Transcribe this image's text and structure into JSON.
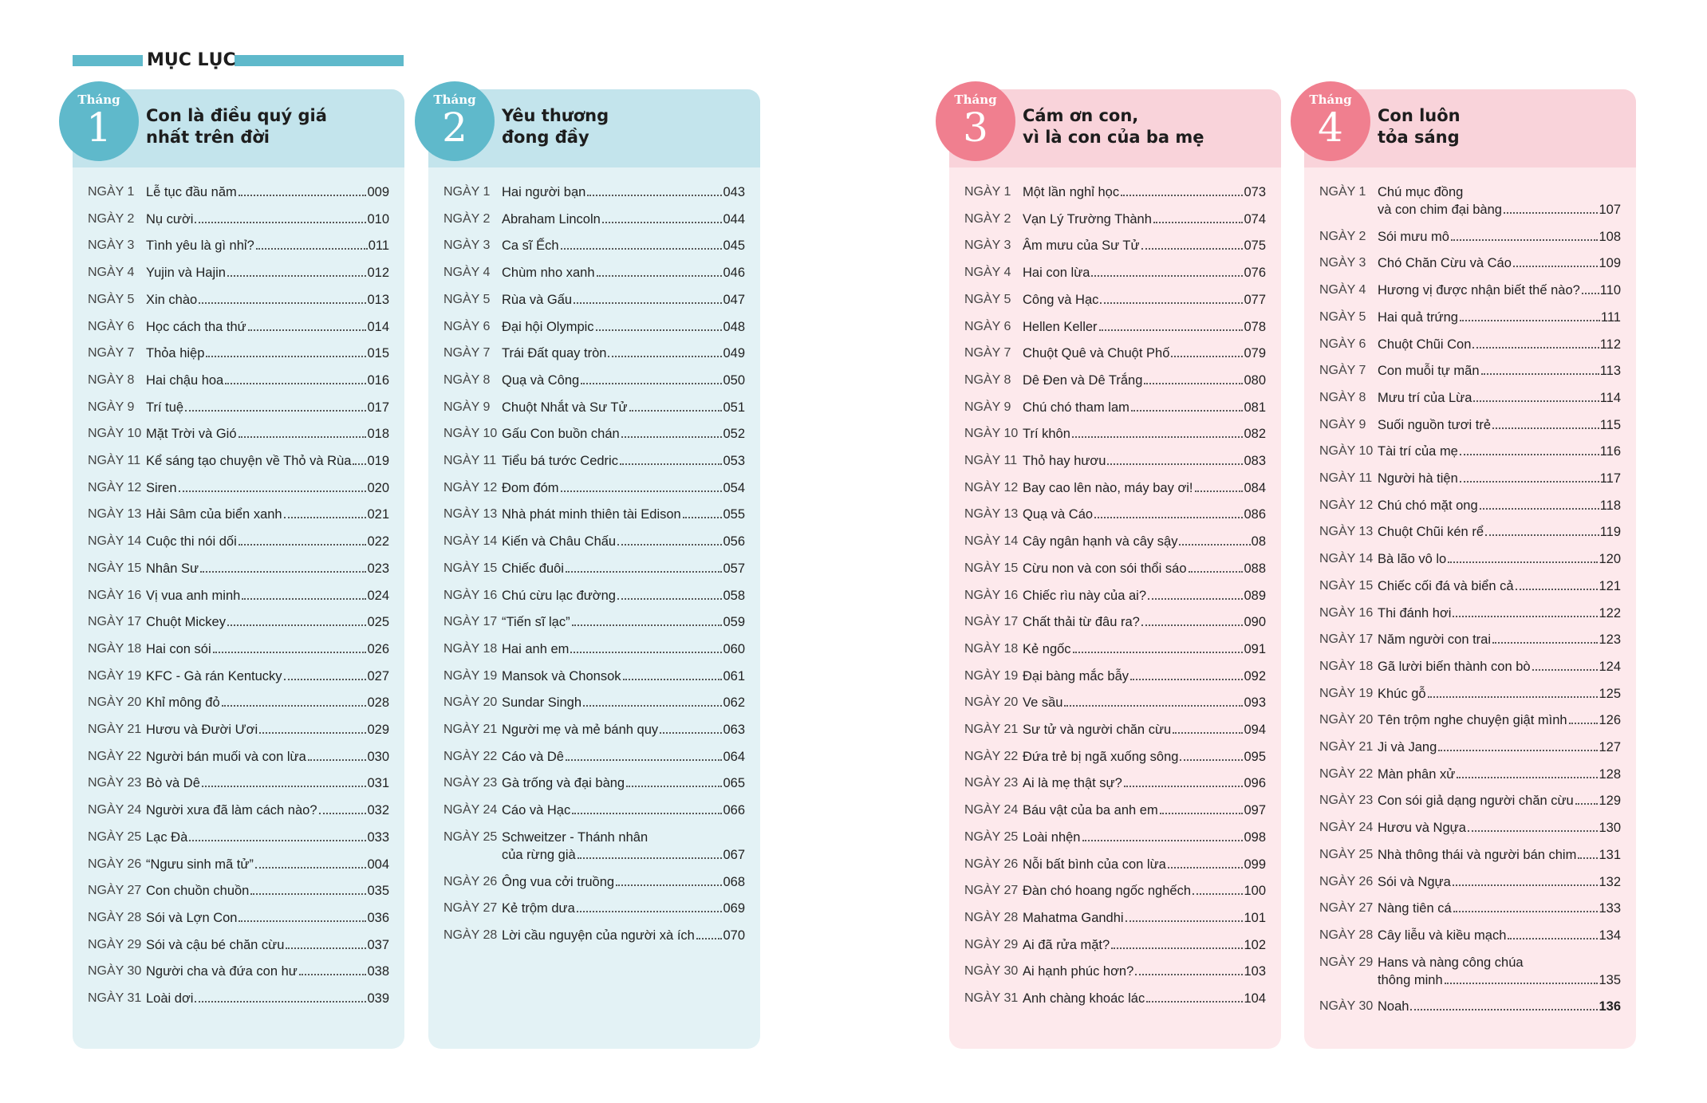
{
  "header": {
    "title": "MỤC LỤC"
  },
  "months": [
    {
      "label": "Tháng",
      "number": "1",
      "title": [
        "Con là điều quý giá",
        "nhất trên đời"
      ],
      "entries": [
        {
          "day": "NGÀY 1",
          "title": [
            "Lễ tục đầu năm"
          ],
          "page": "009"
        },
        {
          "day": "NGÀY 2",
          "title": [
            "Nụ cười"
          ],
          "page": "010"
        },
        {
          "day": "NGÀY 3",
          "title": [
            "Tình yêu là gì nhỉ?"
          ],
          "page": "011"
        },
        {
          "day": "NGÀY 4",
          "title": [
            "Yujin và Hajin"
          ],
          "page": "012"
        },
        {
          "day": "NGÀY 5",
          "title": [
            "Xin chào"
          ],
          "page": "013"
        },
        {
          "day": "NGÀY 6",
          "title": [
            "Học cách tha thứ"
          ],
          "page": "014"
        },
        {
          "day": "NGÀY 7",
          "title": [
            "Thỏa hiệp"
          ],
          "page": "015"
        },
        {
          "day": "NGÀY 8",
          "title": [
            "Hai chậu hoa"
          ],
          "page": "016"
        },
        {
          "day": "NGÀY 9",
          "title": [
            "Trí tuệ"
          ],
          "page": "017"
        },
        {
          "day": "NGÀY 10",
          "title": [
            "Mặt Trời và Gió"
          ],
          "page": "018"
        },
        {
          "day": "NGÀY 11",
          "title": [
            "Kể sáng tạo chuyện về Thỏ và Rùa"
          ],
          "page": "019"
        },
        {
          "day": "NGÀY 12",
          "title": [
            "Siren"
          ],
          "page": "020"
        },
        {
          "day": "NGÀY 13",
          "title": [
            "Hải Sâm của biển xanh"
          ],
          "page": "021"
        },
        {
          "day": "NGÀY 14",
          "title": [
            "Cuộc thi nói dối"
          ],
          "page": "022"
        },
        {
          "day": "NGÀY 15",
          "title": [
            "Nhân Sư"
          ],
          "page": "023"
        },
        {
          "day": "NGÀY 16",
          "title": [
            "Vị vua anh minh"
          ],
          "page": "024"
        },
        {
          "day": "NGÀY 17",
          "title": [
            "Chuột Mickey"
          ],
          "page": "025"
        },
        {
          "day": "NGÀY 18",
          "title": [
            "Hai con sói"
          ],
          "page": "026"
        },
        {
          "day": "NGÀY 19",
          "title": [
            "KFC - Gà rán Kentucky"
          ],
          "page": "027"
        },
        {
          "day": "NGÀY 20",
          "title": [
            "Khỉ mông đỏ"
          ],
          "page": "028"
        },
        {
          "day": "NGÀY 21",
          "title": [
            "Hươu và Đười Ươi"
          ],
          "page": "029"
        },
        {
          "day": "NGÀY 22",
          "title": [
            "Người bán muối và con lừa"
          ],
          "page": "030"
        },
        {
          "day": "NGÀY 23",
          "title": [
            "Bò và Dê"
          ],
          "page": "031"
        },
        {
          "day": "NGÀY 24",
          "title": [
            "Người xưa đã làm cách nào?"
          ],
          "page": "032"
        },
        {
          "day": "NGÀY 25",
          "title": [
            "Lạc Đà"
          ],
          "page": "033"
        },
        {
          "day": "NGÀY 26",
          "title": [
            "“Ngưu sinh mã tử”"
          ],
          "page": "004"
        },
        {
          "day": "NGÀY 27",
          "title": [
            "Con chuồn chuồn"
          ],
          "page": "035"
        },
        {
          "day": "NGÀY 28",
          "title": [
            "Sói và Lợn Con"
          ],
          "page": "036"
        },
        {
          "day": "NGÀY 29",
          "title": [
            "Sói và cậu bé chăn cừu"
          ],
          "page": "037"
        },
        {
          "day": "NGÀY 30",
          "title": [
            "Người cha và đứa con hư"
          ],
          "page": "038"
        },
        {
          "day": "NGÀY 31",
          "title": [
            "Loài dơi"
          ],
          "page": "039"
        }
      ]
    },
    {
      "label": "Tháng",
      "number": "2",
      "title": [
        "Yêu thương",
        "đong đầy"
      ],
      "entries": [
        {
          "day": "NGÀY 1",
          "title": [
            "Hai người bạn"
          ],
          "page": "043"
        },
        {
          "day": "NGÀY 2",
          "title": [
            "Abraham Lincoln"
          ],
          "page": "044"
        },
        {
          "day": "NGÀY 3",
          "title": [
            "Ca sĩ Ếch"
          ],
          "page": "045"
        },
        {
          "day": "NGÀY 4",
          "title": [
            "Chùm nho xanh"
          ],
          "page": "046"
        },
        {
          "day": "NGÀY 5",
          "title": [
            "Rùa và Gấu"
          ],
          "page": "047"
        },
        {
          "day": "NGÀY 6",
          "title": [
            "Đại hội Olympic"
          ],
          "page": "048"
        },
        {
          "day": "NGÀY 7",
          "title": [
            "Trái Đất quay tròn"
          ],
          "page": "049"
        },
        {
          "day": "NGÀY 8",
          "title": [
            "Quạ và Công"
          ],
          "page": "050"
        },
        {
          "day": "NGÀY 9",
          "title": [
            "Chuột Nhắt và Sư Tử"
          ],
          "page": "051"
        },
        {
          "day": "NGÀY 10",
          "title": [
            "Gấu Con buồn chán"
          ],
          "page": "052"
        },
        {
          "day": "NGÀY 11",
          "title": [
            "Tiểu bá tước Cedric"
          ],
          "page": "053"
        },
        {
          "day": "NGÀY 12",
          "title": [
            "Đom đóm"
          ],
          "page": "054"
        },
        {
          "day": "NGÀY 13",
          "title": [
            "Nhà phát minh thiên tài Edison"
          ],
          "page": "055"
        },
        {
          "day": "NGÀY 14",
          "title": [
            "Kiến và Châu Chấu"
          ],
          "page": "056"
        },
        {
          "day": "NGÀY 15",
          "title": [
            "Chiếc đuôi"
          ],
          "page": "057"
        },
        {
          "day": "NGÀY 16",
          "title": [
            "Chú cừu lạc đường"
          ],
          "page": "058"
        },
        {
          "day": "NGÀY 17",
          "title": [
            "“Tiến sĩ lạc”"
          ],
          "page": "059"
        },
        {
          "day": "NGÀY 18",
          "title": [
            "Hai anh em"
          ],
          "page": "060"
        },
        {
          "day": "NGÀY 19",
          "title": [
            "Mansok và Chonsok"
          ],
          "page": "061"
        },
        {
          "day": "NGÀY 20",
          "title": [
            "Sundar Singh"
          ],
          "page": "062"
        },
        {
          "day": "NGÀY 21",
          "title": [
            "Người mẹ và mẻ bánh quy"
          ],
          "page": "063"
        },
        {
          "day": "NGÀY 22",
          "title": [
            "Cáo và Dê"
          ],
          "page": "064"
        },
        {
          "day": "NGÀY 23",
          "title": [
            "Gà trống và đại bàng"
          ],
          "page": "065"
        },
        {
          "day": "NGÀY 24",
          "title": [
            "Cáo và Hạc"
          ],
          "page": "066"
        },
        {
          "day": "NGÀY 25",
          "title": [
            "Schweitzer - Thánh nhân",
            "của rừng già"
          ],
          "page": "067"
        },
        {
          "day": "NGÀY 26",
          "title": [
            "Ông vua cởi truồng"
          ],
          "page": "068"
        },
        {
          "day": "NGÀY 27",
          "title": [
            "Kẻ trộm dưa"
          ],
          "page": "069"
        },
        {
          "day": "NGÀY 28",
          "title": [
            "Lời cầu nguyện của người xà ích"
          ],
          "page": "070"
        }
      ]
    },
    {
      "label": "Tháng",
      "number": "3",
      "title": [
        "Cám ơn con,",
        "vì là con của ba mẹ"
      ],
      "entries": [
        {
          "day": "NGÀY 1",
          "title": [
            "Một lần nghỉ học"
          ],
          "page": "073"
        },
        {
          "day": "NGÀY 2",
          "title": [
            "Vạn Lý Trường Thành"
          ],
          "page": "074"
        },
        {
          "day": "NGÀY 3",
          "title": [
            "Âm mưu của Sư Tử"
          ],
          "page": "075"
        },
        {
          "day": "NGÀY 4",
          "title": [
            "Hai con lừa"
          ],
          "page": "076"
        },
        {
          "day": "NGÀY 5",
          "title": [
            "Công và Hạc"
          ],
          "page": "077"
        },
        {
          "day": "NGÀY 6",
          "title": [
            "Hellen Keller"
          ],
          "page": "078"
        },
        {
          "day": "NGÀY 7",
          "title": [
            "Chuột Quê và Chuột Phố"
          ],
          "page": "079"
        },
        {
          "day": "NGÀY 8",
          "title": [
            "Dê Đen và Dê Trắng"
          ],
          "page": "080"
        },
        {
          "day": "NGÀY 9",
          "title": [
            "Chú chó tham lam"
          ],
          "page": "081"
        },
        {
          "day": "NGÀY 10",
          "title": [
            "Trí khôn"
          ],
          "page": "082"
        },
        {
          "day": "NGÀY 11",
          "title": [
            "Thỏ hay hươu"
          ],
          "page": "083"
        },
        {
          "day": "NGÀY 12",
          "title": [
            "Bay cao lên nào, máy bay ơi!"
          ],
          "page": "084"
        },
        {
          "day": "NGÀY 13",
          "title": [
            "Quạ và Cáo"
          ],
          "page": "086"
        },
        {
          "day": "NGÀY 14",
          "title": [
            "Cây ngân hạnh và cây sậy"
          ],
          "page": "08"
        },
        {
          "day": "NGÀY 15",
          "title": [
            "Cừu non và con sói thổi sáo"
          ],
          "page": "088"
        },
        {
          "day": "NGÀY 16",
          "title": [
            "Chiếc rìu này của ai?"
          ],
          "page": "089"
        },
        {
          "day": "NGÀY 17",
          "title": [
            "Chất thải từ đâu ra?"
          ],
          "page": "090"
        },
        {
          "day": "NGÀY 18",
          "title": [
            "Kẻ ngốc"
          ],
          "page": "091"
        },
        {
          "day": "NGÀY 19",
          "title": [
            "Đại bàng mắc bẫy"
          ],
          "page": "092"
        },
        {
          "day": "NGÀY 20",
          "title": [
            "Ve sầu"
          ],
          "page": "093"
        },
        {
          "day": "NGÀY 21",
          "title": [
            "Sư tử và người chăn cừu"
          ],
          "page": "094"
        },
        {
          "day": "NGÀY 22",
          "title": [
            "Đứa trẻ bị ngã xuống sông"
          ],
          "page": "095"
        },
        {
          "day": "NGÀY 23",
          "title": [
            "Ai là mẹ thật sự?"
          ],
          "page": "096"
        },
        {
          "day": "NGÀY 24",
          "title": [
            "Báu vật của ba anh em"
          ],
          "page": "097"
        },
        {
          "day": "NGÀY 25",
          "title": [
            "Loài nhện"
          ],
          "page": "098"
        },
        {
          "day": "NGÀY 26",
          "title": [
            "Nỗi bất bình của con lừa"
          ],
          "page": "099"
        },
        {
          "day": "NGÀY 27",
          "title": [
            "Đàn chó hoang ngốc nghếch"
          ],
          "page": "100"
        },
        {
          "day": "NGÀY 28",
          "title": [
            "Mahatma Gandhi"
          ],
          "page": "101"
        },
        {
          "day": "NGÀY 29",
          "title": [
            "Ai đã rửa mặt?"
          ],
          "page": "102"
        },
        {
          "day": "NGÀY 30",
          "title": [
            "Ai hạnh phúc hơn?"
          ],
          "page": "103"
        },
        {
          "day": "NGÀY 31",
          "title": [
            "Anh chàng khoác lác"
          ],
          "page": "104"
        }
      ]
    },
    {
      "label": "Tháng",
      "number": "4",
      "title": [
        "Con luôn",
        "tỏa sáng"
      ],
      "entries": [
        {
          "day": "NGÀY 1",
          "title": [
            "Chú mục đồng",
            "và con chim đại bàng"
          ],
          "page": "107"
        },
        {
          "day": "NGÀY 2",
          "title": [
            "Sói mưu mô"
          ],
          "page": "108"
        },
        {
          "day": "NGÀY 3",
          "title": [
            "Chó Chăn Cừu và Cáo"
          ],
          "page": "109"
        },
        {
          "day": "NGÀY 4",
          "title": [
            "Hương vị được nhận biết thế nào?"
          ],
          "page": "110"
        },
        {
          "day": "NGÀY 5",
          "title": [
            "Hai quả trứng"
          ],
          "page": "111"
        },
        {
          "day": "NGÀY 6",
          "title": [
            "Chuột Chũi Con"
          ],
          "page": "112"
        },
        {
          "day": "NGÀY 7",
          "title": [
            "Con muỗi tự mãn"
          ],
          "page": "113"
        },
        {
          "day": "NGÀY 8",
          "title": [
            "Mưu trí của Lừa"
          ],
          "page": "114"
        },
        {
          "day": "NGÀY 9",
          "title": [
            "Suối nguồn tươi trẻ"
          ],
          "page": "115"
        },
        {
          "day": "NGÀY 10",
          "title": [
            "Tài trí của mẹ"
          ],
          "page": "116"
        },
        {
          "day": "NGÀY 11",
          "title": [
            "Người hà tiện"
          ],
          "page": "117"
        },
        {
          "day": "NGÀY 12",
          "title": [
            "Chú chó mặt ong"
          ],
          "page": "118"
        },
        {
          "day": "NGÀY 13",
          "title": [
            "Chuột Chũi kén rể"
          ],
          "page": "119"
        },
        {
          "day": "NGÀY 14",
          "title": [
            "Bà lão vô lo"
          ],
          "page": "120"
        },
        {
          "day": "NGÀY 15",
          "title": [
            "Chiếc cối đá và biển cả"
          ],
          "page": "121"
        },
        {
          "day": "NGÀY 16",
          "title": [
            "Thi đánh hơi"
          ],
          "page": "122"
        },
        {
          "day": "NGÀY 17",
          "title": [
            "Năm người con trai"
          ],
          "page": "123"
        },
        {
          "day": "NGÀY 18",
          "title": [
            "Gã lười biến thành con bò"
          ],
          "page": "124"
        },
        {
          "day": "NGÀY 19",
          "title": [
            "Khúc gỗ"
          ],
          "page": "125"
        },
        {
          "day": "NGÀY 20",
          "title": [
            "Tên trộm nghe chuyện giật mình"
          ],
          "page": "126"
        },
        {
          "day": "NGÀY 21",
          "title": [
            "Ji và Jang"
          ],
          "page": "127"
        },
        {
          "day": "NGÀY 22",
          "title": [
            "Màn phân xử"
          ],
          "page": "128"
        },
        {
          "day": "NGÀY 23",
          "title": [
            "Con sói giả dạng người chăn cừu"
          ],
          "page": "129"
        },
        {
          "day": "NGÀY 24",
          "title": [
            "Hươu và Ngựa"
          ],
          "page": "130"
        },
        {
          "day": "NGÀY 25",
          "title": [
            "Nhà thông thái và người bán chim"
          ],
          "page": "131"
        },
        {
          "day": "NGÀY 26",
          "title": [
            "Sói và Ngựa"
          ],
          "page": "132"
        },
        {
          "day": "NGÀY 27",
          "title": [
            "Nàng tiên cá"
          ],
          "page": "133"
        },
        {
          "day": "NGÀY 28",
          "title": [
            "Cây liễu và kiều mạch"
          ],
          "page": "134"
        },
        {
          "day": "NGÀY 29",
          "title": [
            "Hans và nàng công chúa",
            "thông minh"
          ],
          "page": "135"
        },
        {
          "day": "NGÀY 30",
          "title": [
            "Noah"
          ],
          "page": "136"
        }
      ]
    }
  ]
}
